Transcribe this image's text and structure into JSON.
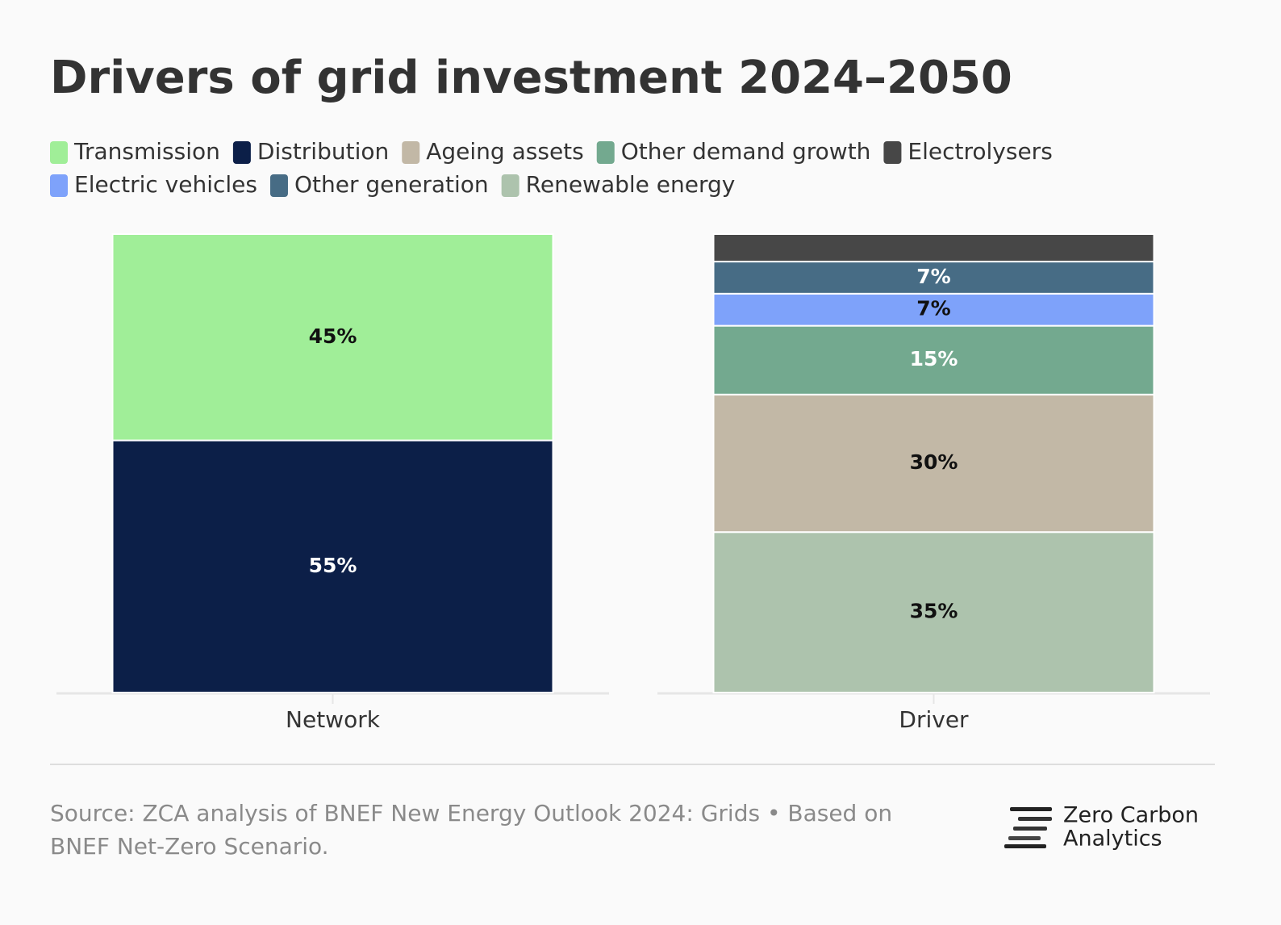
{
  "chart_data": {
    "type": "stacked_bar",
    "title": "Drivers of grid investment 2024–2050",
    "categories": [
      "Network",
      "Driver"
    ],
    "ylim": [
      0,
      100
    ],
    "series": [
      {
        "name": "Transmission",
        "color": "#a0ee98",
        "values": [
          45,
          null
        ],
        "value_labels": [
          "45%",
          null
        ]
      },
      {
        "name": "Distribution",
        "color": "#0c1f48",
        "values": [
          55,
          null
        ],
        "value_labels": [
          "55%",
          null
        ]
      },
      {
        "name": "Ageing assets",
        "color": "#c2b8a6",
        "values": [
          null,
          30
        ],
        "value_labels": [
          null,
          "30%"
        ]
      },
      {
        "name": "Other demand growth",
        "color": "#73a98f",
        "values": [
          null,
          15
        ],
        "value_labels": [
          null,
          "15%"
        ]
      },
      {
        "name": "Electrolysers",
        "color": "#474747",
        "values": [
          null,
          6
        ],
        "value_labels": [
          null,
          null
        ]
      },
      {
        "name": "Electric vehicles",
        "color": "#7ea2fa",
        "values": [
          null,
          7
        ],
        "value_labels": [
          null,
          "7%"
        ]
      },
      {
        "name": "Other generation",
        "color": "#476c85",
        "values": [
          null,
          7
        ],
        "value_labels": [
          null,
          "7%"
        ]
      },
      {
        "name": "Renewable energy",
        "color": "#adc3ad",
        "values": [
          null,
          35
        ],
        "value_labels": [
          null,
          "35%"
        ]
      }
    ],
    "source": [
      "Source: ZCA analysis of BNEF New Energy Outlook 2024: Grids • Based on",
      "BNEF Net-Zero Scenario."
    ],
    "logo": [
      "Zero Carbon",
      "Analytics"
    ]
  }
}
